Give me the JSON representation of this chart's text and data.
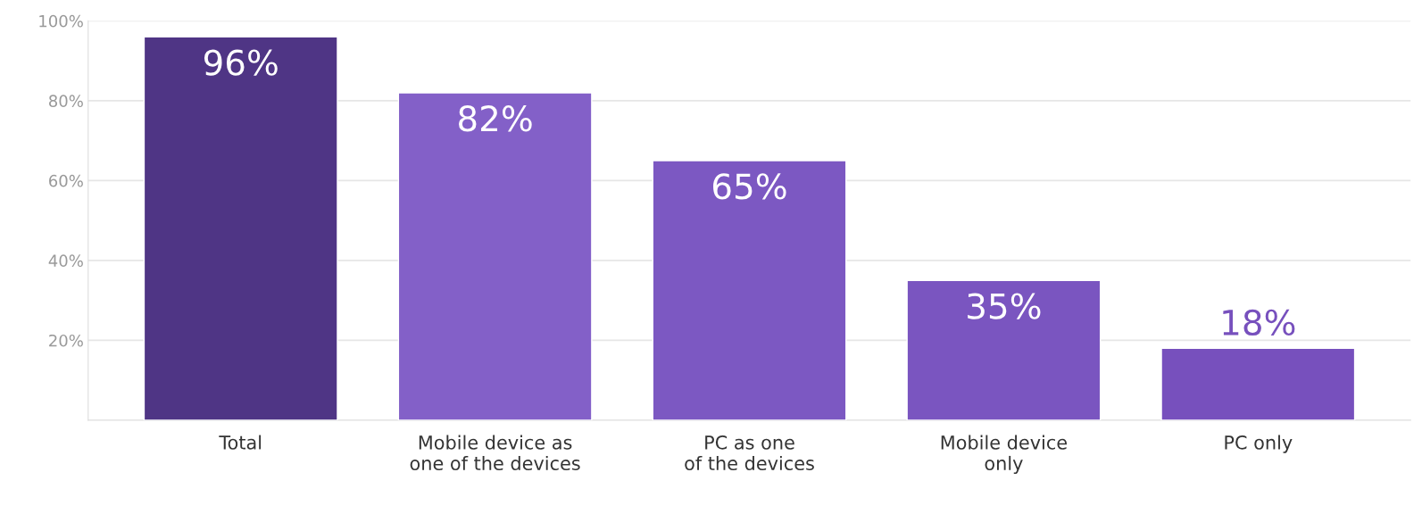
{
  "chart_data": {
    "type": "bar",
    "categories": [
      "Total",
      "Mobile device as\none of the devices",
      "PC as one\nof the devices",
      "Mobile device\nonly",
      "PC only"
    ],
    "values": [
      96,
      82,
      65,
      35,
      18
    ],
    "value_labels": [
      "96%",
      "82%",
      "65%",
      "35%",
      "18%"
    ],
    "colors": [
      "#4f3585",
      "#8360c8",
      "#7c58c2",
      "#7a55c0",
      "#7750bd"
    ],
    "ylim": [
      0,
      100
    ],
    "yticks": [
      {
        "value": 20,
        "label": "20%"
      },
      {
        "value": 40,
        "label": "40%"
      },
      {
        "value": 60,
        "label": "60%"
      },
      {
        "value": 80,
        "label": "80%"
      },
      {
        "value": 100,
        "label": "100%"
      }
    ],
    "grid": "y"
  }
}
